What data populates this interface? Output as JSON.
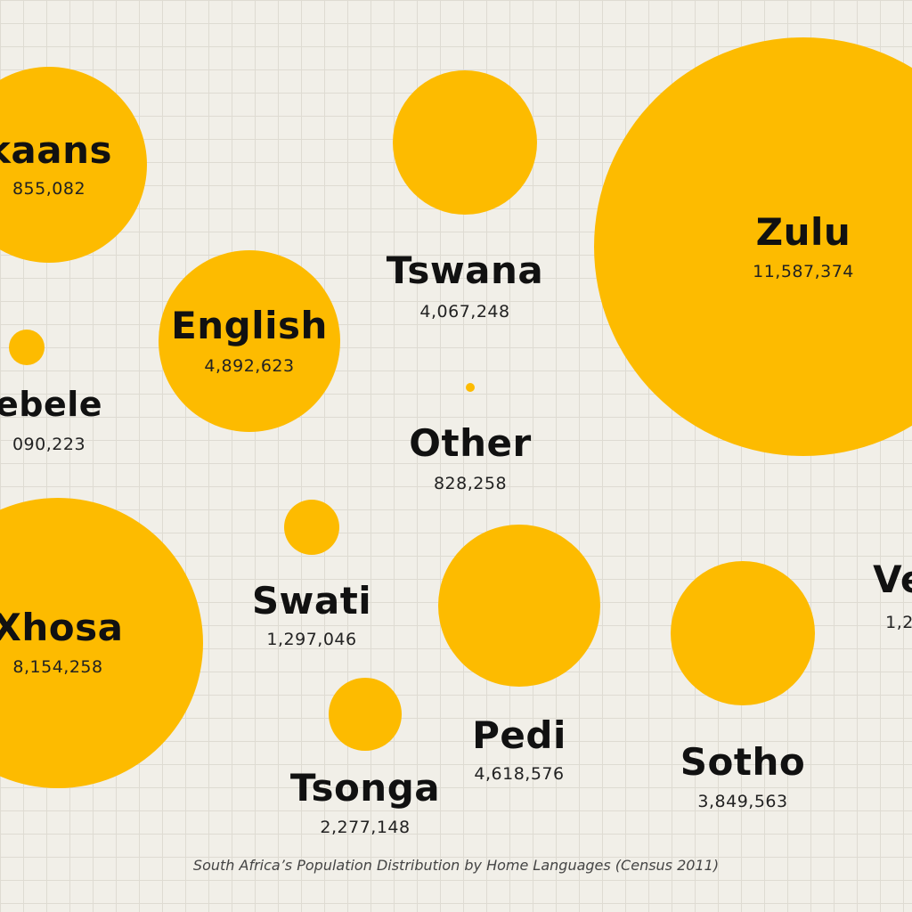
{
  "chart_data": {
    "type": "bubble",
    "title": "South Africa’s Population Distribution by Home Languages (Census 2011)",
    "bubble_color": "#fdbb00",
    "series": [
      {
        "label": "kaans",
        "value_text": "855,082"
      },
      {
        "label": "ebele",
        "value_text": "090,223"
      },
      {
        "label": "Xhosa",
        "value_text": "8,154,258"
      },
      {
        "label": "English",
        "value_text": "4,892,623"
      },
      {
        "label": "Swati",
        "value_text": "1,297,046"
      },
      {
        "label": "Tsonga",
        "value_text": "2,277,148"
      },
      {
        "label": "Tswana",
        "value_text": "4,067,248"
      },
      {
        "label": "Other",
        "value_text": "828,258"
      },
      {
        "label": "Pedi",
        "value_text": "4,618,576"
      },
      {
        "label": "Zulu",
        "value_text": "11,587,374"
      },
      {
        "label": "Sotho",
        "value_text": "3,849,563"
      },
      {
        "label": "Ve",
        "value_text": "1,2"
      }
    ]
  }
}
